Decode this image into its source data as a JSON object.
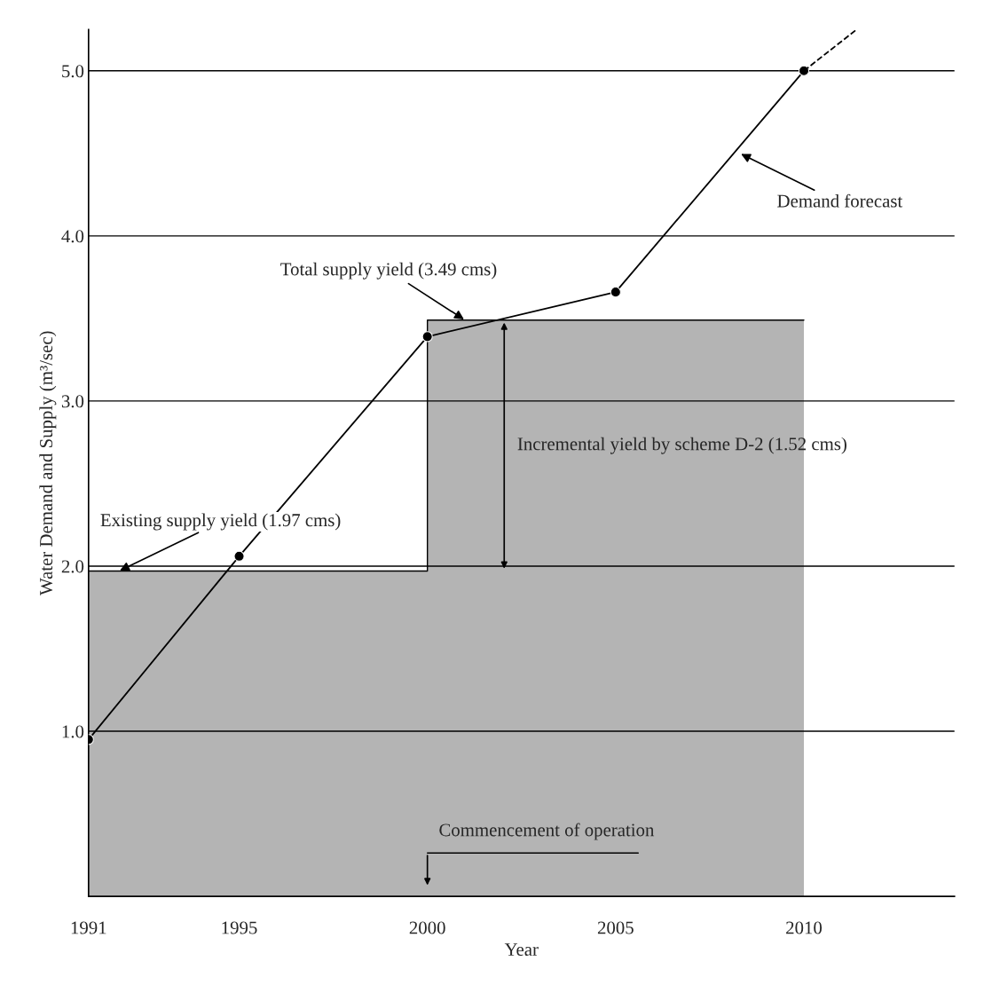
{
  "chart_data": {
    "type": "line",
    "xlabel": "Year",
    "ylabel": "Water Demand and Supply (m³/sec)",
    "series": [
      {
        "type": "area",
        "color": "#b4b4b4",
        "x": [
          1991,
          2000,
          2000,
          2010
        ],
        "values": [
          1.97,
          1.97,
          3.49,
          3.49
        ]
      },
      {
        "color": "#000000",
        "marker": "circle",
        "line_style": "solid",
        "x": [
          1991,
          1995,
          2000,
          2005,
          2010
        ],
        "values": [
          0.95,
          2.06,
          3.39,
          3.66,
          5.0
        ]
      },
      {
        "color": "#000000",
        "marker": "none",
        "line_style": "dashed",
        "x": [
          2010,
          2011.4
        ],
        "values": [
          5.0,
          5.25
        ]
      }
    ],
    "xlim": [
      1991,
      2014
    ],
    "ylim": [
      0,
      5.25
    ],
    "xticks": [
      1991,
      1995,
      2000,
      2005,
      2010
    ],
    "yticks": [
      {
        "value": 1,
        "label": "1.0"
      },
      {
        "value": 2,
        "label": "2.0"
      },
      {
        "value": 3,
        "label": "3.0"
      },
      {
        "value": 4,
        "label": "4.0"
      },
      {
        "value": 5,
        "label": "5.0"
      }
    ],
    "grid": "y",
    "annotations": [
      {
        "text": "Existing supply yield (1.97 cms)",
        "x": 1991.8,
        "y": 1.97
      },
      {
        "text": "Total supply yield (3.49 cms)",
        "x": 2001,
        "y": 3.49
      },
      "Incremental yield by scheme D-2 (1.52 cms)",
      {
        "text": "Demand forecast",
        "x": 2008.3,
        "y": 4.5
      },
      "Commencement of operation"
    ]
  }
}
